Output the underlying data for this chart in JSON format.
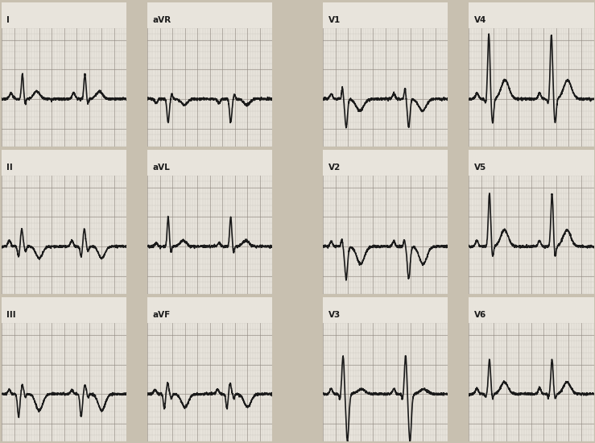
{
  "fig_bg": "#c8c0b0",
  "strip_bg": "#e8e4dc",
  "grid_minor_color": "#b8b0a8",
  "grid_major_color": "#908880",
  "ecg_color": "#1a1a1a",
  "ecg_linewidth": 1.2,
  "label_fontsize": 7.5,
  "white_gap_color": "#c8c0b0",
  "leads_per_strip": [
    [
      "I",
      "II",
      "III"
    ],
    [
      "aVR",
      "aVL",
      "aVF"
    ],
    [
      "V1",
      "V2",
      "V3"
    ],
    [
      "V4",
      "V5",
      "V6"
    ]
  ],
  "lead_waveforms": {
    "I": {
      "P": [
        0.15,
        0.1,
        0.025
      ],
      "Q": null,
      "R": [
        0.33,
        0.42,
        0.016
      ],
      "S": [
        0.375,
        -0.07,
        0.012
      ],
      "T": [
        0.56,
        0.13,
        0.05
      ]
    },
    "II": {
      "P": [
        0.12,
        0.1,
        0.022
      ],
      "Q": [
        0.27,
        -0.18,
        0.016
      ],
      "R": [
        0.32,
        0.3,
        0.018
      ],
      "S": [
        0.38,
        -0.08,
        0.013
      ],
      "T": [
        0.6,
        -0.2,
        0.052
      ]
    },
    "III": {
      "P": [
        0.12,
        0.07,
        0.02
      ],
      "Q": [
        0.27,
        -0.38,
        0.018
      ],
      "R": [
        0.33,
        0.15,
        0.018
      ],
      "S": [
        0.38,
        -0.06,
        0.012
      ],
      "T": [
        0.6,
        -0.28,
        0.055
      ]
    },
    "aVR": {
      "P": [
        0.14,
        -0.07,
        0.022
      ],
      "Q": null,
      "R": [
        0.33,
        -0.4,
        0.018
      ],
      "S": [
        0.39,
        0.08,
        0.013
      ],
      "T": [
        0.59,
        -0.1,
        0.05
      ]
    },
    "aVL": {
      "P": [
        0.14,
        0.06,
        0.022
      ],
      "Q": null,
      "R": [
        0.33,
        0.5,
        0.016
      ],
      "S": [
        0.375,
        -0.1,
        0.012
      ],
      "T": [
        0.57,
        0.1,
        0.05
      ]
    },
    "aVF": {
      "P": [
        0.12,
        0.08,
        0.022
      ],
      "Q": [
        0.27,
        -0.25,
        0.016
      ],
      "R": [
        0.32,
        0.18,
        0.018
      ],
      "S": [
        0.38,
        -0.07,
        0.013
      ],
      "T": [
        0.6,
        -0.22,
        0.055
      ]
    },
    "V1": {
      "P": [
        0.13,
        0.09,
        0.02
      ],
      "Q": null,
      "R": [
        0.31,
        0.18,
        0.013
      ],
      "S": [
        0.37,
        -0.48,
        0.02
      ],
      "T": [
        0.59,
        -0.2,
        0.06
      ]
    },
    "V2": {
      "P": [
        0.13,
        0.09,
        0.02
      ],
      "Q": null,
      "R": [
        0.3,
        0.12,
        0.013
      ],
      "S": [
        0.37,
        -0.55,
        0.022
      ],
      "T": [
        0.6,
        -0.3,
        0.06
      ]
    },
    "V3": {
      "P": [
        0.13,
        0.09,
        0.02
      ],
      "Q": [
        0.27,
        -0.1,
        0.013
      ],
      "R": [
        0.32,
        0.65,
        0.018
      ],
      "S": [
        0.39,
        -0.8,
        0.022
      ],
      "T": [
        0.61,
        0.08,
        0.062
      ]
    },
    "V4": {
      "P": [
        0.13,
        0.1,
        0.022
      ],
      "Q": [
        0.27,
        -0.08,
        0.013
      ],
      "R": [
        0.32,
        1.1,
        0.018
      ],
      "S": [
        0.38,
        -0.4,
        0.018
      ],
      "T": [
        0.58,
        0.32,
        0.062
      ]
    },
    "V5": {
      "P": [
        0.13,
        0.1,
        0.022
      ],
      "Q": null,
      "R": [
        0.33,
        0.9,
        0.018
      ],
      "S": [
        0.38,
        -0.18,
        0.015
      ],
      "T": [
        0.57,
        0.28,
        0.06
      ]
    },
    "V6": {
      "P": [
        0.13,
        0.1,
        0.022
      ],
      "Q": [
        0.27,
        -0.05,
        0.012
      ],
      "R": [
        0.33,
        0.58,
        0.018
      ],
      "S": [
        0.38,
        -0.08,
        0.013
      ],
      "T": [
        0.57,
        0.2,
        0.058
      ]
    }
  }
}
